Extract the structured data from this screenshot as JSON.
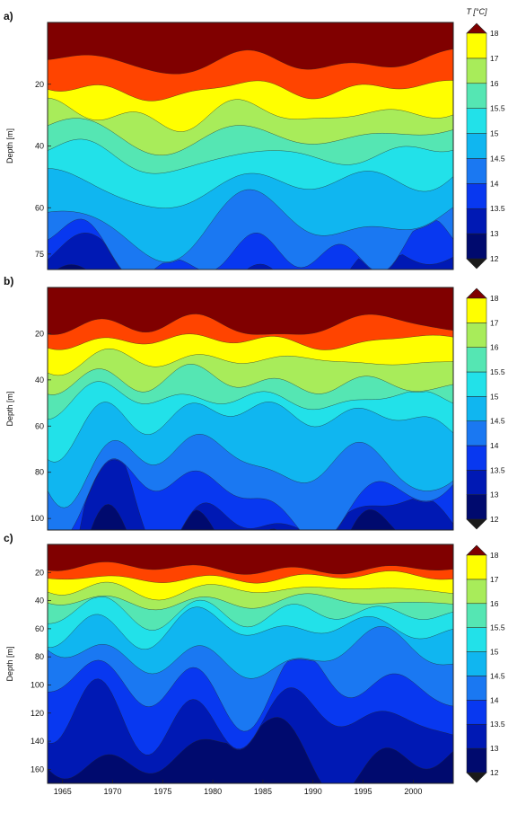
{
  "chart_data": {
    "type": "heatmap",
    "subtype": "filled-contour",
    "colorbar_title": "T [°C]",
    "colorbar_levels": [
      "12",
      "13",
      "13.5",
      "14",
      "14.5",
      "15",
      "15.5",
      "16",
      "17",
      "18"
    ],
    "colors": {
      "dark_navy": "#000a6e",
      "navy": "#0019b4",
      "blue": "#0838f0",
      "medium_blue": "#1a78f2",
      "light_blue": "#10b6f0",
      "cyan": "#22e1e9",
      "aquamarine": "#55e6b3",
      "light_green": "#a8ec5a",
      "yellow": "#ffff00",
      "orange_red": "#ff4400",
      "dark_red": "#800000",
      "black": "#1a1a1a"
    },
    "x_ticks": [
      "1965",
      "1970",
      "1975",
      "1980",
      "1985",
      "1990",
      "1995",
      "2000"
    ],
    "xlim": [
      1963.5,
      2004
    ],
    "panels": [
      {
        "label": "a)",
        "ylabel": "Depth [m]",
        "y_ticks": [
          "20",
          "40",
          "60",
          "75"
        ],
        "ylim": [
          0,
          80
        ]
      },
      {
        "label": "b)",
        "ylabel": "Depth [m]",
        "y_ticks": [
          "20",
          "40",
          "60",
          "80",
          "100"
        ],
        "ylim": [
          0,
          105
        ]
      },
      {
        "label": "c)",
        "ylabel": "Depth [m]",
        "y_ticks": [
          "20",
          "40",
          "60",
          "80",
          "100",
          "120",
          "140",
          "160"
        ],
        "ylim": [
          0,
          170
        ]
      }
    ]
  }
}
